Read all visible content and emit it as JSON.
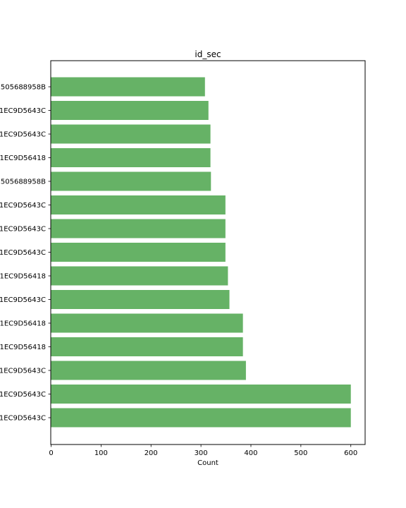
{
  "chart_data": {
    "type": "bar",
    "orientation": "horizontal",
    "title": "id_sec",
    "xlabel": "Count",
    "ylabel": "",
    "xlim": [
      0,
      630
    ],
    "xticks": [
      0,
      100,
      200,
      300,
      400,
      500,
      600
    ],
    "bar_color": "#66b266",
    "grid": false,
    "categories": [
      "1EC9D5643C",
      "1EC9D5643C",
      "1EC9D5643C",
      "1EC9D56418",
      "1EC9D56418",
      "1EC9D5643C",
      "1EC9D56418",
      "1EC9D5643C",
      "1EC9D5643C",
      "1EC9D5643C",
      "505688958B",
      "1EC9D56418",
      "1EC9D5643C",
      "1EC9D5643C",
      "505688958B"
    ],
    "values": [
      600,
      600,
      390,
      384,
      384,
      357,
      354,
      349,
      349,
      349,
      320,
      319,
      319,
      315,
      308
    ]
  }
}
